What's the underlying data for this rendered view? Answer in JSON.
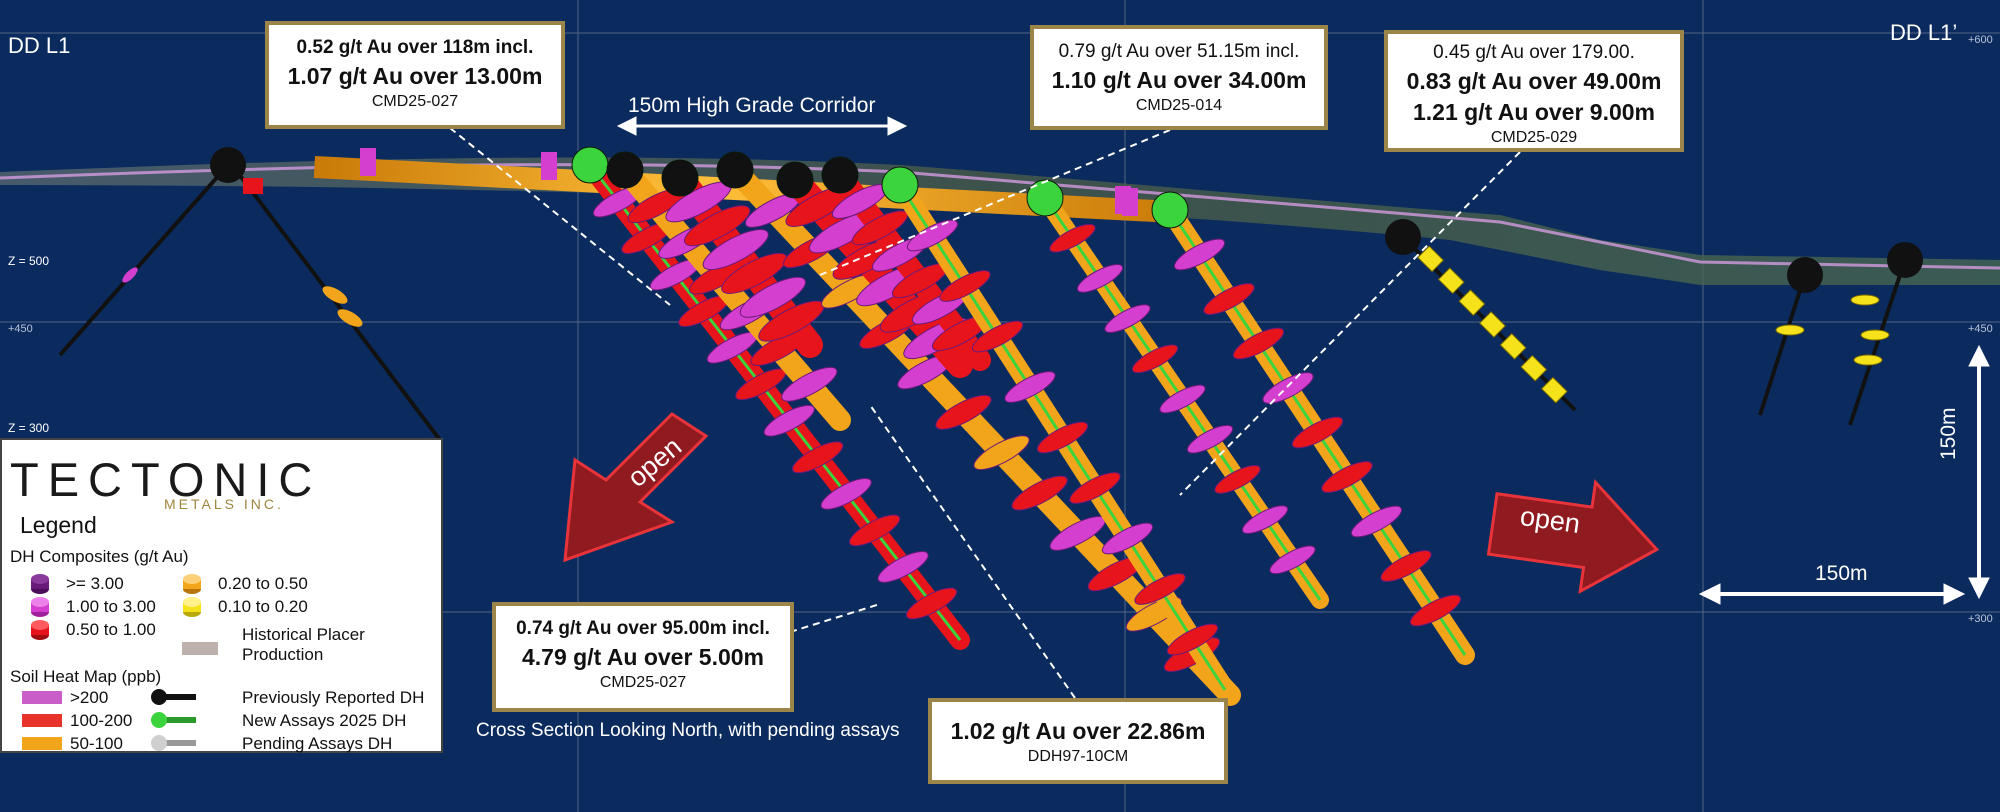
{
  "section_labels": {
    "left": "DD L1",
    "right": "DD L1’"
  },
  "elevation_labels": {
    "z500": "Z = 500",
    "z300": "Z = 300",
    "e600": "+600",
    "e450_left": "+450",
    "e450_right": "+450",
    "e300": "+300"
  },
  "corridor_label": "150m High Grade Corridor",
  "callouts": {
    "cmd25_027_top": {
      "line1": "0.52 g/t Au over 118m incl.",
      "line2": "1.07 g/t Au over 13.00m",
      "hole": "CMD25-027"
    },
    "cmd25_014": {
      "line1": "0.79 g/t Au over 51.15m incl.",
      "line2": "1.10 g/t Au over 34.00m",
      "hole": "CMD25-014"
    },
    "cmd25_029": {
      "line1": "0.45 g/t Au over 179.00.",
      "line2": "0.83 g/t Au over 49.00m",
      "line3": "1.21 g/t Au over 9.00m",
      "hole": "CMD25-029"
    },
    "cmd25_027_bottom": {
      "line1": "0.74 g/t Au over 95.00m incl.",
      "line2": "4.79 g/t Au over 5.00m",
      "hole": "CMD25-027"
    },
    "ddh97": {
      "line1": "1.02 g/t Au over 22.86m",
      "hole": "DDH97-10CM"
    }
  },
  "arrows": {
    "left_label": "open",
    "right_label": "open"
  },
  "scale": {
    "horizontal": "150m",
    "vertical": "150m"
  },
  "caption": "Cross Section Looking North, with pending assays",
  "legend": {
    "logo_main": "TECTONIC",
    "logo_sub": "METALS INC.",
    "title": "Legend",
    "composites_heading": "DH Composites (g/t Au)",
    "composites": [
      ">= 3.00",
      "1.00 to 3.00",
      "0.50 to 1.00",
      "0.20 to 0.50",
      "0.10 to 0.20"
    ],
    "placer": "Historical Placer Production",
    "soil_heading": "Soil Heat Map (ppb)",
    "soil": [
      ">200",
      "100-200",
      "50-100"
    ],
    "holes": [
      "Previously Reported DH",
      "New Assays 2025 DH",
      "Pending Assays DH"
    ]
  },
  "colors": {
    "background": "#0b2b5e",
    "gold_callout_border": "#9c8548",
    "drillhole_orange": "#f2a51a",
    "composite_red": "#e8141c",
    "composite_magenta": "#d43fcf",
    "composite_purple": "#6a1a7a",
    "composite_yellow": "#f5e21a",
    "new_assay_green": "#3cd43c",
    "open_arrow": "#8f1a1f"
  }
}
